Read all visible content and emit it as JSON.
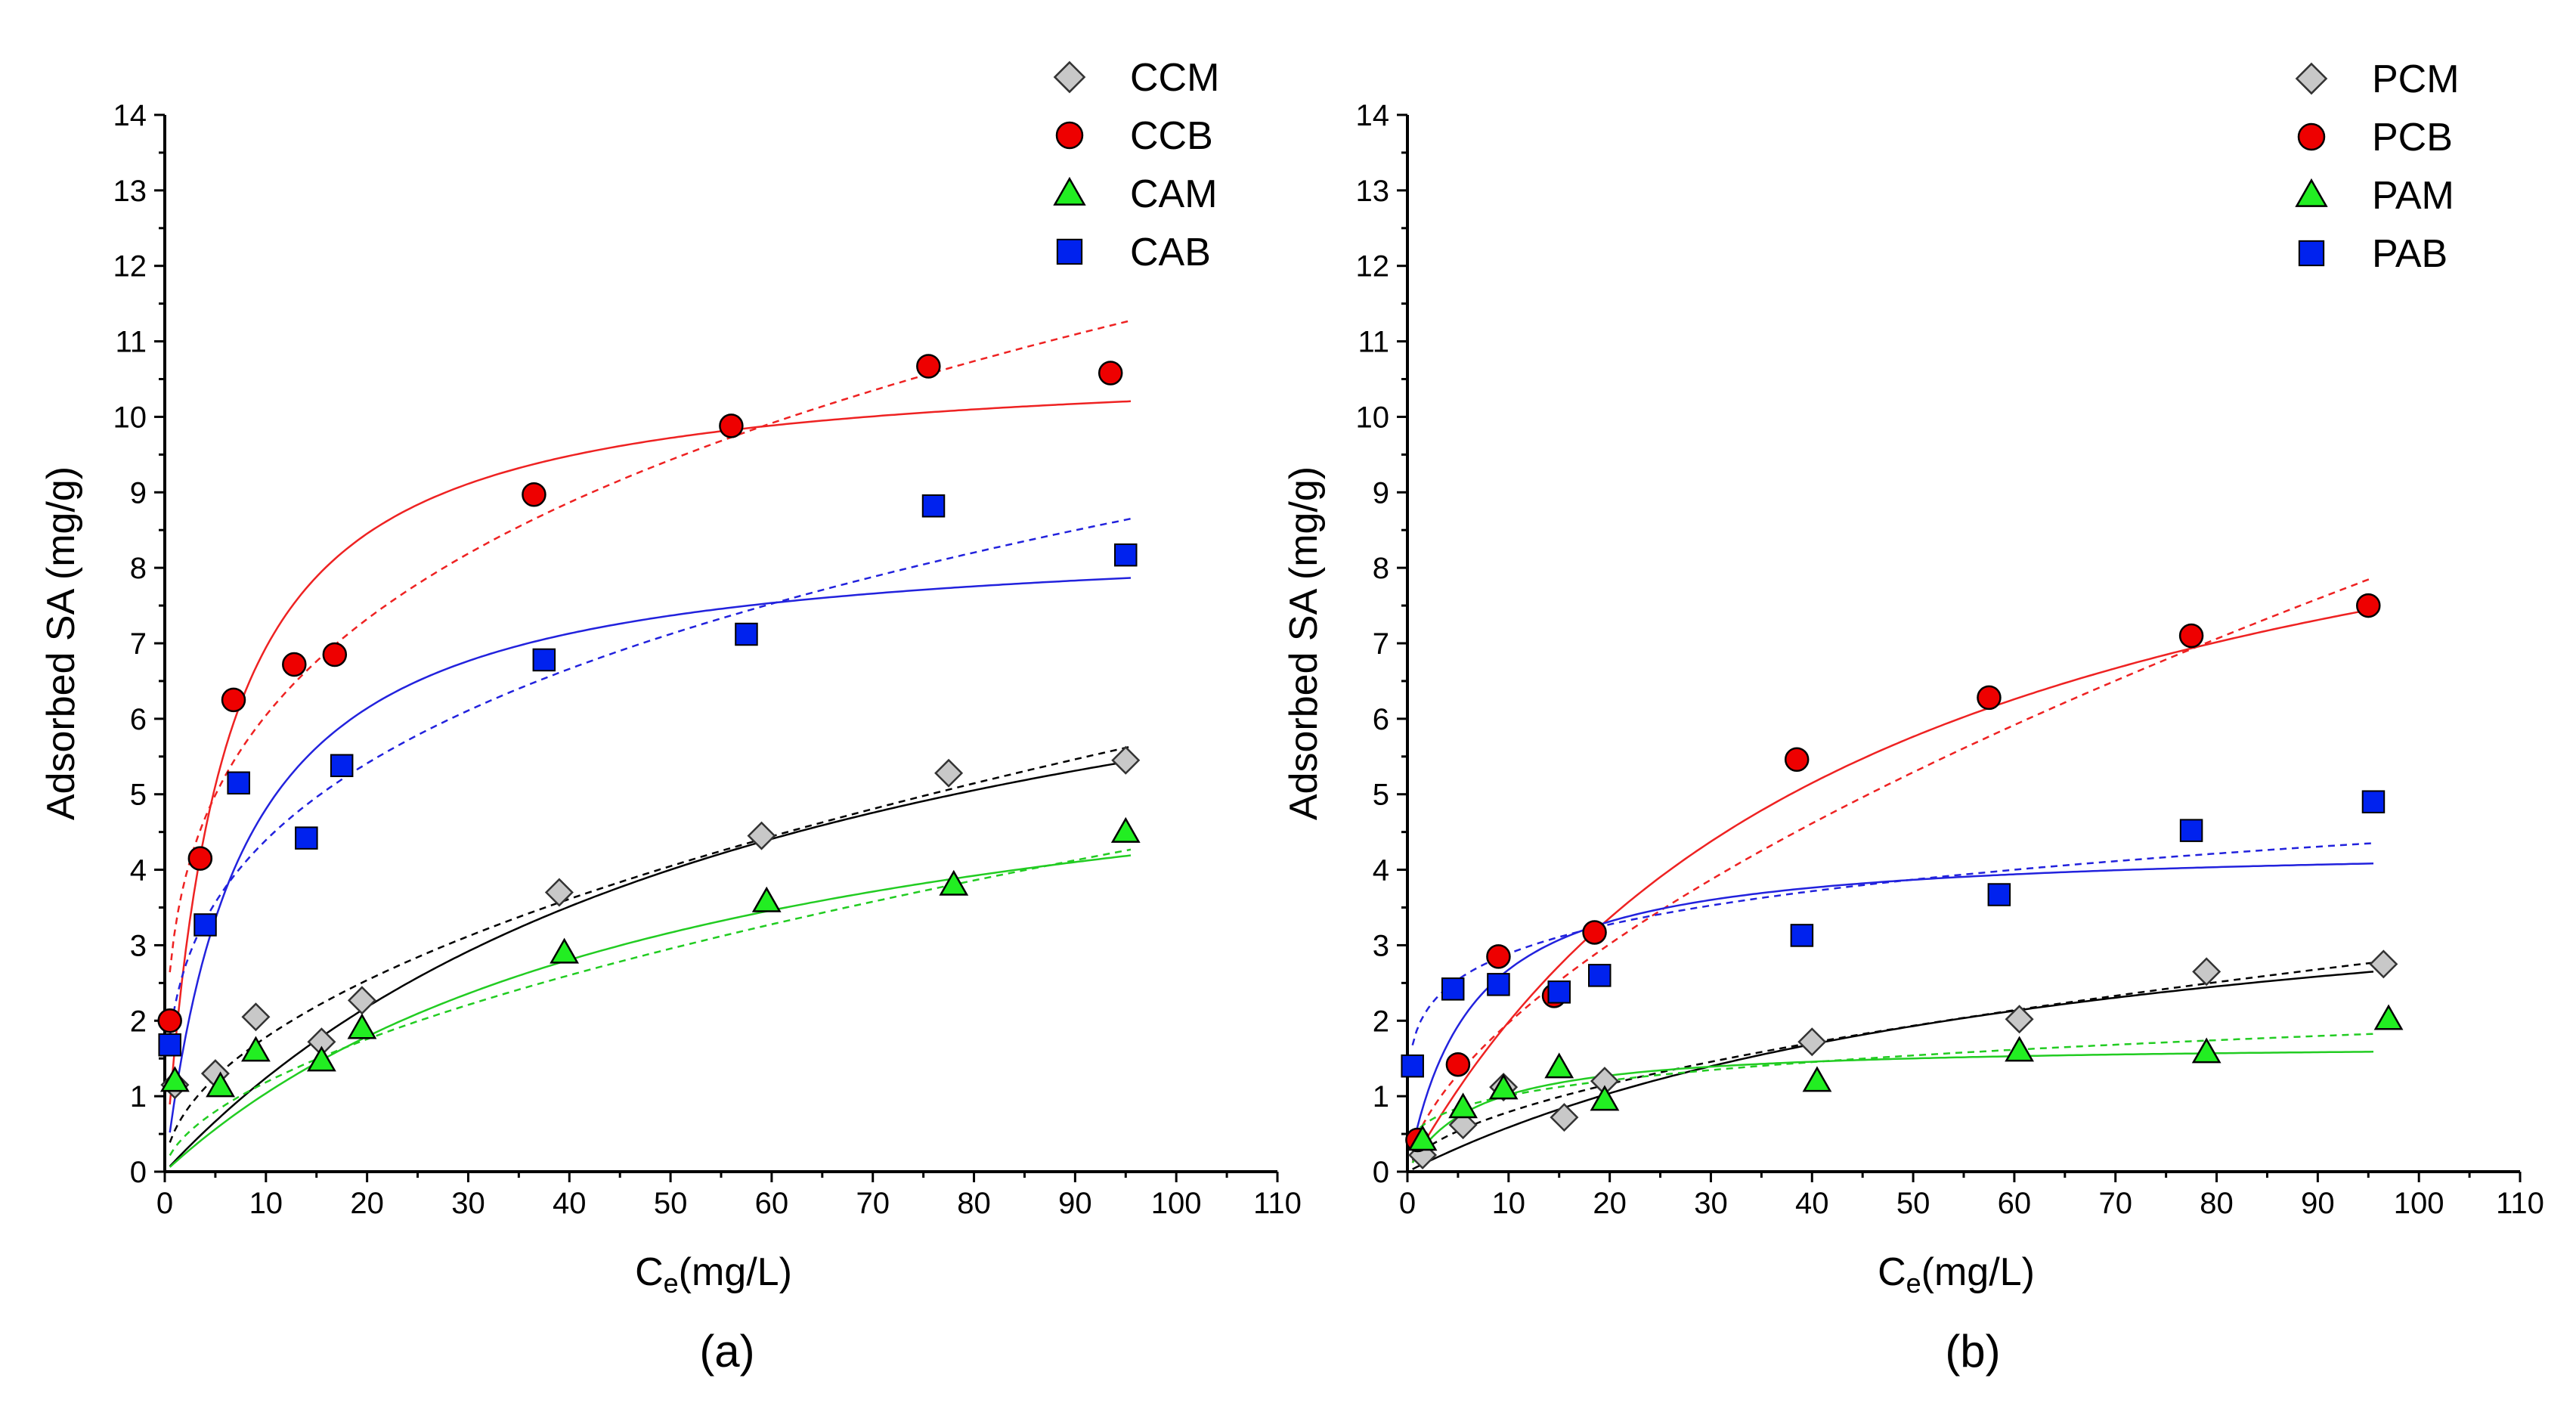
{
  "chart_data": [
    {
      "type": "scatter",
      "panel_label": "(a)",
      "xlabel": "C",
      "xlabel_sub": "e",
      "xlabel_unit": "(mg/L)",
      "ylabel": "Adsorbed SA (mg/g)",
      "xlim": [
        0,
        110
      ],
      "ylim": [
        0,
        14
      ],
      "xticks": [
        "0",
        "10",
        "20",
        "30",
        "40",
        "50",
        "60",
        "70",
        "80",
        "90",
        "100",
        "110"
      ],
      "yticks": [
        "0",
        "1",
        "2",
        "3",
        "4",
        "5",
        "6",
        "7",
        "8",
        "9",
        "10",
        "11",
        "12",
        "13",
        "14"
      ],
      "legend": [
        "CCM",
        "CCB",
        "CAM",
        "CAB"
      ],
      "series": [
        {
          "name": "CCM",
          "marker": "diamond",
          "color": "#c8c8c8",
          "line_color": "#000000",
          "x": [
            1.0,
            5.0,
            9.0,
            15.5,
            19.5,
            39.0,
            59.0,
            77.5,
            95.0
          ],
          "y": [
            1.15,
            1.3,
            2.05,
            1.72,
            2.27,
            3.7,
            4.45,
            5.28,
            5.45
          ],
          "solid_fit": {
            "model": "langmuir",
            "qmax": 9.0,
            "K": 0.016
          },
          "dashed_fit": {
            "model": "freundlich",
            "Kf": 0.55,
            "n": 1.96
          }
        },
        {
          "name": "CCB",
          "marker": "circle",
          "color": "#ee0000",
          "line_color": "#ee2222",
          "x": [
            0.5,
            3.5,
            6.8,
            12.8,
            16.8,
            36.5,
            56.0,
            75.5,
            93.5
          ],
          "y": [
            2.0,
            4.15,
            6.25,
            6.72,
            6.85,
            8.97,
            9.88,
            10.67,
            10.58
          ],
          "solid_fit": {
            "model": "langmuir",
            "qmax": 10.8,
            "K": 0.18
          },
          "dashed_fit": {
            "model": "freundlich",
            "Kf": 3.2,
            "n": 3.62
          }
        },
        {
          "name": "CAM",
          "marker": "triangle",
          "color": "#22ee22",
          "line_color": "#22cc22",
          "x": [
            1.0,
            5.5,
            9.0,
            15.5,
            19.5,
            39.5,
            59.5,
            78.0,
            95.0
          ],
          "y": [
            1.2,
            1.13,
            1.6,
            1.47,
            1.9,
            2.9,
            3.58,
            3.8,
            4.5
          ],
          "solid_fit": {
            "model": "langmuir",
            "qmax": 6.5,
            "K": 0.019
          },
          "dashed_fit": {
            "model": "freundlich",
            "Kf": 0.32,
            "n": 1.76
          }
        },
        {
          "name": "CAB",
          "marker": "square",
          "color": "#0022ee",
          "line_color": "#2222dd",
          "x": [
            0.5,
            4.0,
            7.3,
            14.0,
            17.5,
            37.5,
            57.5,
            76.0,
            95.0
          ],
          "y": [
            1.68,
            3.27,
            5.15,
            4.42,
            5.38,
            6.78,
            7.12,
            8.82,
            8.17
          ],
          "solid_fit": {
            "model": "langmuir",
            "qmax": 8.5,
            "K": 0.13
          },
          "dashed_fit": {
            "model": "freundlich",
            "Kf": 2.2,
            "n": 3.33
          }
        }
      ]
    },
    {
      "type": "scatter",
      "panel_label": "(b)",
      "xlabel": "C",
      "xlabel_sub": "e",
      "xlabel_unit": "(mg/L)",
      "ylabel": "Adsorbed SA (mg/g)",
      "xlim": [
        0,
        110
      ],
      "ylim": [
        0,
        14
      ],
      "xticks": [
        "0",
        "10",
        "20",
        "30",
        "40",
        "50",
        "60",
        "70",
        "80",
        "90",
        "100",
        "110"
      ],
      "yticks": [
        "0",
        "1",
        "2",
        "3",
        "4",
        "5",
        "6",
        "7",
        "8",
        "9",
        "10",
        "11",
        "12",
        "13",
        "14"
      ],
      "legend": [
        "PCM",
        "PCB",
        "PAM",
        "PAB"
      ],
      "series": [
        {
          "name": "PCM",
          "marker": "diamond",
          "color": "#c8c8c8",
          "line_color": "#000000",
          "x": [
            1.5,
            5.5,
            9.5,
            15.5,
            19.5,
            40.0,
            60.5,
            79.0,
            96.5
          ],
          "y": [
            0.22,
            0.62,
            1.12,
            0.72,
            1.2,
            1.72,
            2.02,
            2.65,
            2.75
          ],
          "solid_fit": {
            "model": "langmuir",
            "qmax": 4.5,
            "K": 0.015
          },
          "dashed_fit": {
            "model": "freundlich",
            "Kf": 0.22,
            "n": 1.8
          }
        },
        {
          "name": "PCB",
          "marker": "circle",
          "color": "#ee0000",
          "line_color": "#ee2222",
          "x": [
            1.0,
            5.0,
            9.0,
            14.5,
            18.5,
            38.5,
            57.5,
            77.5,
            95.0
          ],
          "y": [
            0.42,
            1.42,
            2.85,
            2.33,
            3.17,
            5.46,
            6.28,
            7.1,
            7.5
          ],
          "solid_fit": {
            "model": "langmuir",
            "qmax": 11.0,
            "K": 0.022
          },
          "dashed_fit": {
            "model": "freundlich",
            "Kf": 0.48,
            "n": 1.63
          }
        },
        {
          "name": "PAM",
          "marker": "triangle",
          "color": "#22ee22",
          "line_color": "#22cc22",
          "x": [
            1.5,
            5.5,
            9.5,
            15.0,
            19.5,
            40.5,
            60.5,
            79.0,
            97.0
          ],
          "y": [
            0.42,
            0.85,
            1.1,
            1.38,
            0.95,
            1.2,
            1.6,
            1.58,
            2.02
          ],
          "solid_fit": {
            "model": "langmuir",
            "qmax": 1.7,
            "K": 0.15
          },
          "dashed_fit": {
            "model": "freundlich",
            "Kf": 0.55,
            "n": 3.8
          }
        },
        {
          "name": "PAB",
          "marker": "square",
          "color": "#0022ee",
          "line_color": "#2222dd",
          "x": [
            0.5,
            4.5,
            9.0,
            15.0,
            19.0,
            39.0,
            58.5,
            77.5,
            95.5
          ],
          "y": [
            1.4,
            2.42,
            2.48,
            2.38,
            2.6,
            3.13,
            3.67,
            4.52,
            4.9
          ],
          "solid_fit": {
            "model": "langmuir",
            "qmax": 4.35,
            "K": 0.16
          },
          "dashed_fit": {
            "model": "freundlich",
            "Kf": 1.9,
            "n": 5.5
          }
        }
      ]
    }
  ]
}
